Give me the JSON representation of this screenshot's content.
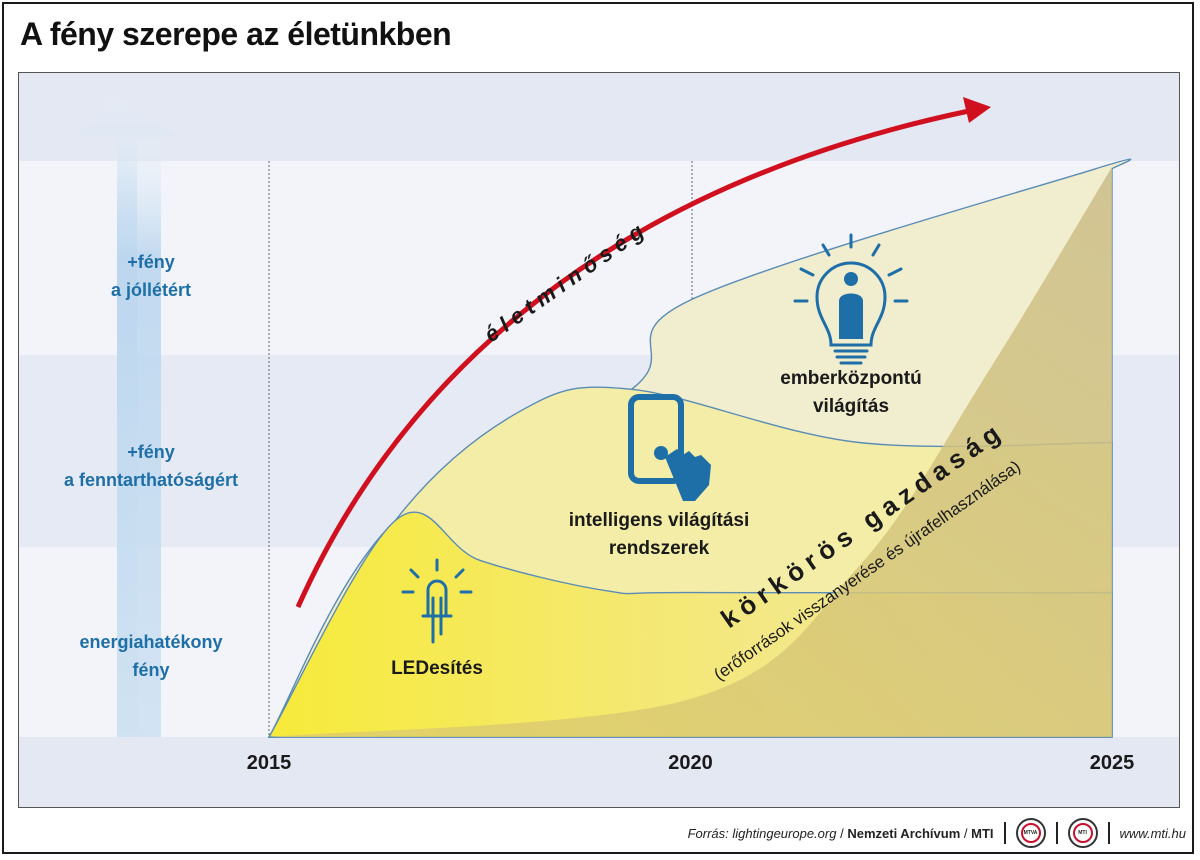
{
  "title": "A fény szerepe az életünkben",
  "chart_data": {
    "type": "area",
    "x_ticks": [
      "2015",
      "2020",
      "2025"
    ],
    "y_levels": [
      {
        "line1": "energiahatékony",
        "line2": "fény"
      },
      {
        "line1": "+fény",
        "line2": "a fenntarthatóságért"
      },
      {
        "line1": "+fény",
        "line2": "a jóllétért"
      }
    ],
    "series": [
      {
        "name": "LEDesítés",
        "points": [
          [
            2015,
            0
          ],
          [
            2016.5,
            1.14
          ],
          [
            2017.5,
            0.93
          ],
          [
            2019,
            0.77
          ],
          [
            2020,
            0.76
          ],
          [
            2025,
            0.76
          ]
        ]
      },
      {
        "name": "intelligens világítási rendszerek",
        "points": [
          [
            2015,
            0
          ],
          [
            2016.5,
            1.14
          ],
          [
            2018,
            1.72
          ],
          [
            2019.3,
            1.83
          ],
          [
            2022,
            1.55
          ],
          [
            2025,
            1.55
          ]
        ]
      },
      {
        "name": "emberközpontú világítás",
        "points": [
          [
            2015,
            0
          ],
          [
            2016.5,
            1.14
          ],
          [
            2019.3,
            1.83
          ],
          [
            2020,
            2.3
          ],
          [
            2024.8,
            2.99
          ],
          [
            2025,
            2.99
          ]
        ]
      },
      {
        "name": "körkörös gazdaság",
        "points": [
          [
            2015,
            0
          ],
          [
            2020,
            0.2
          ],
          [
            2022,
            0.9
          ],
          [
            2023.5,
            1.9
          ],
          [
            2025,
            3.0
          ]
        ]
      }
    ],
    "labels": {
      "led": "LEDesítés",
      "smart_line1": "intelligens világítási",
      "smart_line2": "rendszerek",
      "human_line1": "emberközpontú",
      "human_line2": "világítás",
      "quality": "életminőség",
      "circular": "körkörös gazdaság",
      "circular_sub": "(erőforrások visszanyerése és újrafelhasználása)"
    },
    "colors": {
      "led": "#f5e743",
      "smart": "#f4efae",
      "human": "#f2efd0",
      "circular": "#d8c572",
      "arrow": "#d0101e",
      "text_blue": "#1e6fa8",
      "line": "#5a8cb6"
    }
  },
  "footer": {
    "source_prefix": "Forrás:",
    "source_site": "lightingeurope.org",
    "slash1": "/",
    "archive": "Nemzeti Archívum",
    "slash2": "/",
    "mti": "MTI",
    "logo1": "MTVA",
    "logo2": "MTI",
    "url": "www.mti.hu"
  }
}
